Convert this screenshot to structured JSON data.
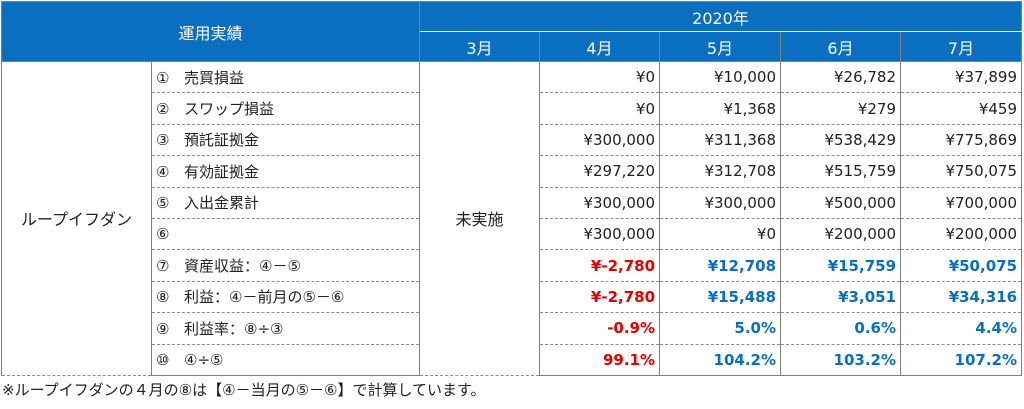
{
  "header": {
    "category": "運用実績",
    "year": "2020年",
    "months": [
      "3月",
      "4月",
      "5月",
      "6月",
      "7月"
    ]
  },
  "strategy": "ループイフダン",
  "not_run_label": "未実施",
  "colors": {
    "header_bg": "#0a6fc0",
    "negative": "#e60000",
    "positive": "#0a6fc0"
  },
  "rows": [
    {
      "no": "①",
      "label": "売買損益",
      "values": [
        "¥0",
        "¥10,000",
        "¥26,782",
        "¥37,899"
      ]
    },
    {
      "no": "②",
      "label": "スワップ損益",
      "values": [
        "¥0",
        "¥1,368",
        "¥279",
        "¥459"
      ]
    },
    {
      "no": "③",
      "label": "預託証拠金",
      "values": [
        "¥300,000",
        "¥311,368",
        "¥538,429",
        "¥775,869"
      ]
    },
    {
      "no": "④",
      "label": "有効証拠金",
      "values": [
        "¥297,220",
        "¥312,708",
        "¥515,759",
        "¥750,075"
      ]
    },
    {
      "no": "⑤",
      "label": "入出金累計",
      "values": [
        "¥300,000",
        "¥300,000",
        "¥500,000",
        "¥700,000"
      ]
    },
    {
      "no": "⑥",
      "label": "",
      "values": [
        "¥300,000",
        "¥0",
        "¥200,000",
        "¥200,000"
      ]
    },
    {
      "no": "⑦",
      "label": "資産収益：④－⑤",
      "values": [
        "¥-2,780",
        "¥12,708",
        "¥15,759",
        "¥50,075"
      ]
    },
    {
      "no": "⑧",
      "label": "利益：④－前月の⑤－⑥",
      "values": [
        "¥-2,780",
        "¥15,488",
        "¥3,051",
        "¥34,316"
      ]
    },
    {
      "no": "⑨",
      "label": "利益率：⑧÷③",
      "values": [
        "-0.9%",
        "5.0%",
        "0.6%",
        "4.4%"
      ]
    },
    {
      "no": "⑩",
      "label": "④÷⑤",
      "values": [
        "99.1%",
        "104.2%",
        "103.2%",
        "107.2%"
      ]
    }
  ],
  "footnote": "※ループイフダンの４月の⑧は【④－当月の⑤－⑥】で計算しています。"
}
